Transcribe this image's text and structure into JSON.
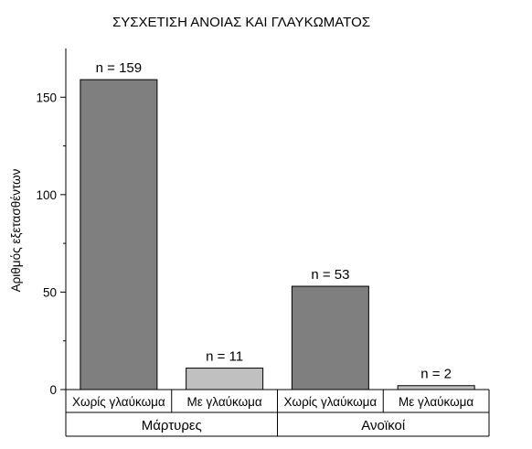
{
  "chart_data": {
    "type": "bar",
    "title": "ΣΥΣΧΕΤΙΣΗ ΑΝΟΙΑΣ ΚΑΙ ΓΛΑΥΚΩΜΑΤΟΣ",
    "ylabel": "Αριθμός εξετασθέντων",
    "ylim": [
      0,
      175
    ],
    "yticks": [
      0,
      50,
      100,
      150
    ],
    "groups": [
      "Μάρτυρες",
      "Ανοϊκοί"
    ],
    "categories": [
      "Χωρίς γλαύκωμα",
      "Με γλαύκωμα",
      "Χωρίς γλαύκωμα",
      "Με γλαύκωμα"
    ],
    "values": [
      159,
      11,
      53,
      2
    ],
    "data_labels": [
      "n = 159",
      "n = 11",
      "n = 53",
      "n = 2"
    ],
    "colors": {
      "without_glaucoma": "#7f7f7f",
      "with_glaucoma": "#c0c0c0"
    }
  }
}
